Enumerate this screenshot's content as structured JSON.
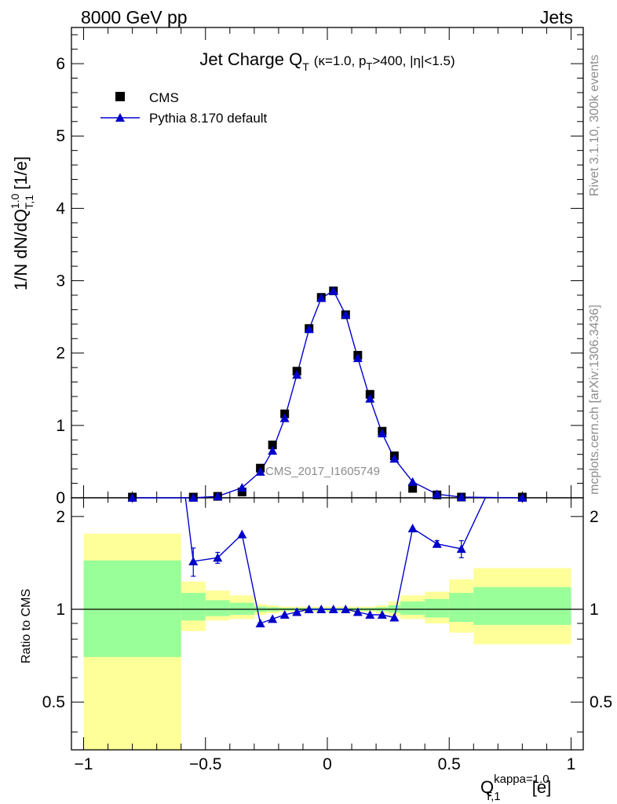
{
  "header": {
    "left": "8000 GeV pp",
    "right": "Jets"
  },
  "side_labels": {
    "top": "Rivet 3.1.10,  300k events",
    "bottom": "mcplots.cern.ch [arXiv:1306.3436]"
  },
  "watermark": "CMS_2017_I1605749",
  "colors": {
    "data": "#000000",
    "mc": "#0000cc",
    "band_inner": "#99ff99",
    "band_outer": "#ffff99"
  },
  "chart_data": [
    {
      "type": "scatter",
      "panel": "main",
      "title": {
        "main": "Jet Charge Q",
        "sub": "T",
        "extra": "(κ=1.0, p",
        "extra_sub": "T",
        "extra_tail": ">400, |η|<1.5)"
      },
      "ylabel": {
        "pre": "1/N dN/dQ",
        "sup": "1.0",
        "sub": "T,1",
        "post": " [1/e]"
      },
      "xlim": [
        -1.05,
        1.05
      ],
      "ylim": [
        0,
        6.5
      ],
      "yticks": [
        0,
        1,
        2,
        3,
        4,
        5,
        6
      ],
      "legend_position": "top-left",
      "series": [
        {
          "name": "CMS",
          "marker": "square",
          "x": [
            -0.8,
            -0.55,
            -0.45,
            -0.35,
            -0.275,
            -0.225,
            -0.175,
            -0.125,
            -0.075,
            -0.025,
            0.025,
            0.075,
            0.125,
            0.175,
            0.225,
            0.275,
            0.35,
            0.45,
            0.55,
            0.8
          ],
          "y": [
            0.01,
            0.01,
            0.02,
            0.08,
            0.41,
            0.73,
            1.16,
            1.75,
            2.34,
            2.77,
            2.86,
            2.53,
            1.97,
            1.43,
            0.92,
            0.58,
            0.13,
            0.04,
            0.01,
            0.01
          ]
        },
        {
          "name": "Pythia 8.170 default",
          "marker": "triangle",
          "x": [
            -0.8,
            -0.55,
            -0.45,
            -0.35,
            -0.275,
            -0.225,
            -0.175,
            -0.125,
            -0.075,
            -0.025,
            0.025,
            0.075,
            0.125,
            0.175,
            0.225,
            0.275,
            0.35,
            0.45,
            0.55,
            0.8
          ],
          "y": [
            0.0,
            0.0,
            0.02,
            0.14,
            0.36,
            0.65,
            1.1,
            1.7,
            2.33,
            2.76,
            2.86,
            2.53,
            1.93,
            1.37,
            0.89,
            0.54,
            0.22,
            0.05,
            0.01,
            0.0
          ]
        }
      ]
    },
    {
      "type": "line",
      "panel": "ratio",
      "ylabel": "Ratio to CMS",
      "xlabel": {
        "pre": "Q",
        "sup": "kappa=1.0",
        "sub": "T,1",
        "post": " [e]"
      },
      "xlim": [
        -1.05,
        1.05
      ],
      "ylim": [
        0.35,
        2.3
      ],
      "xticks": [
        -1,
        -0.5,
        0,
        0.5,
        1
      ],
      "xtick_labels": [
        "−1",
        "−0.5",
        "0",
        "0.5",
        "1"
      ],
      "yticks": [
        0.5,
        1,
        2
      ],
      "ytick_labels": [
        "0.5",
        "1",
        "2"
      ],
      "bands": [
        {
          "x0": -1.0,
          "x1": -0.6,
          "inner": [
            0.7,
            1.44
          ],
          "outer": [
            0.35,
            1.76
          ]
        },
        {
          "x0": -0.6,
          "x1": -0.5,
          "inner": [
            0.92,
            1.13
          ],
          "outer": [
            0.85,
            1.23
          ]
        },
        {
          "x0": -0.5,
          "x1": -0.4,
          "inner": [
            0.95,
            1.07
          ],
          "outer": [
            0.92,
            1.15
          ]
        },
        {
          "x0": -0.4,
          "x1": -0.3,
          "inner": [
            0.96,
            1.05
          ],
          "outer": [
            0.93,
            1.11
          ]
        },
        {
          "x0": -0.3,
          "x1": -0.25,
          "inner": [
            0.98,
            1.02
          ],
          "outer": [
            0.96,
            1.04
          ]
        },
        {
          "x0": -0.25,
          "x1": -0.2,
          "inner": [
            0.985,
            1.015
          ],
          "outer": [
            0.97,
            1.03
          ]
        },
        {
          "x0": -0.2,
          "x1": 0.2,
          "inner": [
            0.99,
            1.01
          ],
          "outer": [
            0.98,
            1.02
          ]
        },
        {
          "x0": 0.2,
          "x1": 0.25,
          "inner": [
            0.985,
            1.015
          ],
          "outer": [
            0.97,
            1.03
          ]
        },
        {
          "x0": 0.25,
          "x1": 0.3,
          "inner": [
            0.975,
            1.03
          ],
          "outer": [
            0.95,
            1.06
          ]
        },
        {
          "x0": 0.3,
          "x1": 0.4,
          "inner": [
            0.96,
            1.06
          ],
          "outer": [
            0.93,
            1.11
          ]
        },
        {
          "x0": 0.4,
          "x1": 0.5,
          "inner": [
            0.94,
            1.08
          ],
          "outer": [
            0.9,
            1.14
          ]
        },
        {
          "x0": 0.5,
          "x1": 0.6,
          "inner": [
            0.91,
            1.13
          ],
          "outer": [
            0.84,
            1.25
          ]
        },
        {
          "x0": 0.6,
          "x1": 1.0,
          "inner": [
            0.89,
            1.18
          ],
          "outer": [
            0.77,
            1.36
          ]
        }
      ],
      "series": [
        {
          "name": "Pythia 8.170 default",
          "x": [
            -0.8,
            -0.55,
            -0.45,
            -0.35,
            -0.275,
            -0.225,
            -0.175,
            -0.125,
            -0.075,
            -0.025,
            0.025,
            0.075,
            0.125,
            0.175,
            0.225,
            0.275,
            0.35,
            0.45,
            0.55,
            0.8
          ],
          "y": [
            null,
            1.43,
            1.47,
            1.75,
            0.9,
            0.93,
            0.96,
            0.98,
            1.0,
            1.0,
            1.0,
            1.0,
            0.98,
            0.96,
            0.96,
            0.94,
            1.83,
            1.63,
            1.57,
            null
          ],
          "err": [
            0,
            0.15,
            0.06,
            0,
            0,
            0,
            0,
            0,
            0,
            0,
            0,
            0,
            0,
            0,
            0,
            0,
            0,
            0.04,
            0.1,
            0
          ],
          "offscale_from": [
            -0.6,
            3.0
          ],
          "offscale_to": [
            0.67,
            2.5
          ]
        }
      ]
    }
  ]
}
